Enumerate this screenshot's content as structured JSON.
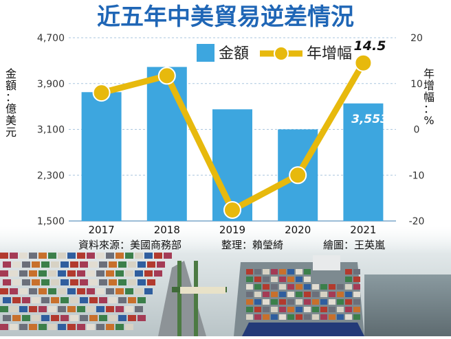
{
  "chart_data": {
    "type": "bar+line",
    "title": "近五年中美貿易逆差情況",
    "categories": [
      "2017",
      "2018",
      "2019",
      "2020",
      "2021"
    ],
    "series": [
      {
        "name": "金額",
        "type": "bar",
        "axis": "left",
        "values": [
          3750,
          4190,
          3450,
          3100,
          3553
        ]
      },
      {
        "name": "年增幅",
        "type": "line",
        "axis": "right",
        "values": [
          8.0,
          11.7,
          -17.6,
          -10.0,
          14.5
        ]
      }
    ],
    "ylabel_left": "金額：億美元",
    "ylabel_right": "年增幅：%",
    "y_left_ticks": [
      "4,700",
      "3,900",
      "3,100",
      "2,300",
      "1,500"
    ],
    "y_right_ticks": [
      "20",
      "10",
      "0",
      "-10",
      "-20"
    ],
    "ylim_left": [
      1500,
      4700
    ],
    "ylim_right": [
      -20,
      20
    ],
    "annotations": {
      "bar_2021": "3,553",
      "line_2021": "14.5"
    },
    "grid": true,
    "legend": "top-left"
  },
  "credits": {
    "source": "資料來源：美國商務部",
    "editor": "整理：賴瑩綺",
    "artist": "繪圖：王英嵐"
  },
  "colors": {
    "title": "#1f66b6",
    "bar": "#3da6df",
    "line": "#e7b90d",
    "marker_outline": "#ffffff",
    "grid": "#a9c5de",
    "axis_text": "#333333",
    "background_photo": "port with stacked shipping containers and a container ship"
  }
}
